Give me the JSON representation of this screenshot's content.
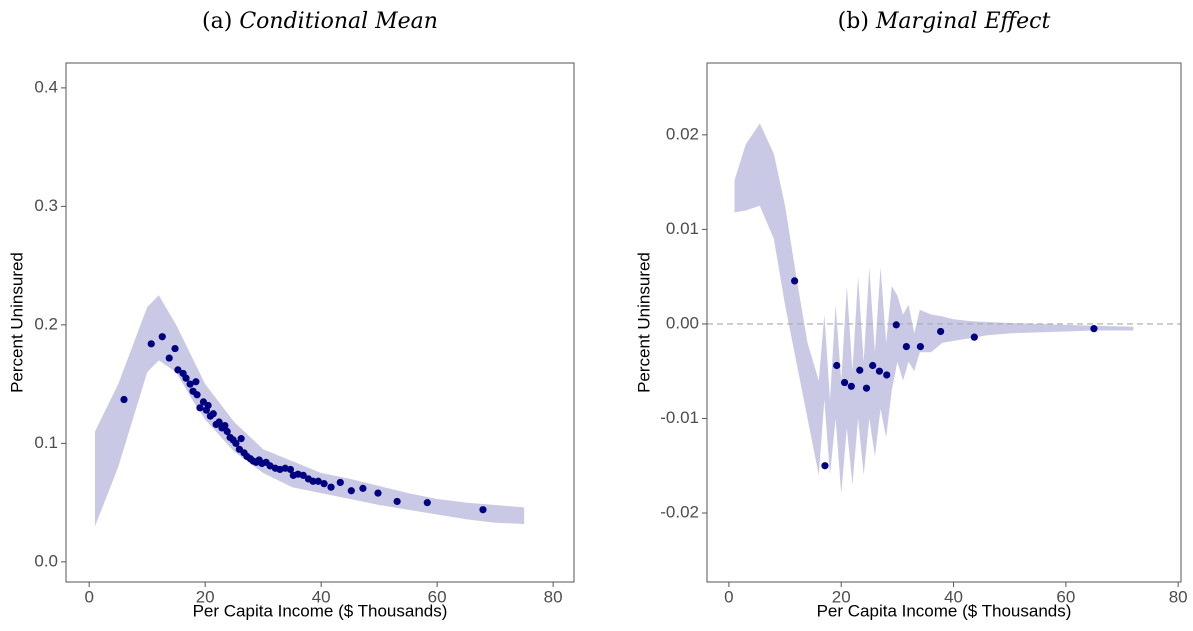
{
  "chart_data": [
    {
      "type": "scatter",
      "panel": "(a)",
      "title": "Conditional Mean",
      "x_label": "Per Capita Income ($ Thousands)",
      "y_label": "Percent Uninsured",
      "xlim": [
        -4,
        83.6
      ],
      "ylim": [
        -0.017,
        0.421
      ],
      "xticks": [
        0,
        20,
        40,
        60,
        80
      ],
      "yticks": [
        {
          "value": 0,
          "label": "0.0"
        },
        0.1,
        0.2,
        0.3,
        0.4
      ],
      "points": {
        "color": "#000080",
        "x": [
          6.0,
          10.7,
          12.6,
          13.8,
          14.8,
          15.3,
          16.2,
          16.7,
          17.4,
          17.9,
          18.4,
          18.6,
          19.1,
          19.7,
          20.2,
          20.5,
          20.9,
          21.4,
          21.9,
          22.4,
          22.9,
          23.4,
          23.8,
          24.3,
          24.8,
          25.3,
          25.9,
          26.2,
          26.7,
          27.2,
          27.8,
          28.3,
          28.8,
          29.3,
          29.8,
          30.5,
          31.2,
          32.1,
          32.9,
          33.8,
          34.7,
          35.2,
          36.0,
          36.9,
          37.8,
          38.6,
          39.5,
          40.5,
          41.7,
          43.3,
          45.2,
          47.2,
          49.8,
          53.1,
          58.3,
          67.9
        ],
        "y": [
          0.137,
          0.184,
          0.19,
          0.172,
          0.18,
          0.162,
          0.159,
          0.155,
          0.15,
          0.144,
          0.152,
          0.141,
          0.13,
          0.135,
          0.128,
          0.132,
          0.123,
          0.125,
          0.116,
          0.118,
          0.113,
          0.115,
          0.11,
          0.105,
          0.103,
          0.1,
          0.095,
          0.104,
          0.092,
          0.089,
          0.087,
          0.085,
          0.084,
          0.086,
          0.083,
          0.084,
          0.081,
          0.079,
          0.078,
          0.079,
          0.078,
          0.073,
          0.074,
          0.073,
          0.07,
          0.068,
          0.068,
          0.066,
          0.063,
          0.067,
          0.06,
          0.062,
          0.058,
          0.051,
          0.05,
          0.044
        ]
      },
      "band": {
        "color": "#c9c9e5",
        "x": [
          1,
          5,
          10,
          12,
          15,
          18,
          20,
          25,
          30,
          35,
          40,
          45,
          50,
          55,
          60,
          65,
          70,
          75
        ],
        "upper": [
          0.11,
          0.15,
          0.215,
          0.225,
          0.2,
          0.17,
          0.15,
          0.118,
          0.095,
          0.085,
          0.075,
          0.07,
          0.064,
          0.058,
          0.053,
          0.05,
          0.048,
          0.046
        ],
        "lower": [
          0.03,
          0.08,
          0.16,
          0.17,
          0.16,
          0.135,
          0.12,
          0.093,
          0.075,
          0.063,
          0.058,
          0.053,
          0.048,
          0.044,
          0.04,
          0.036,
          0.033,
          0.032
        ]
      }
    },
    {
      "type": "scatter",
      "panel": "(b)",
      "title": "Marginal Effect",
      "x_label": "Per Capita Income ($ Thousands)",
      "y_label": "Percent Uninsured",
      "xlim": [
        -3.9,
        80.5
      ],
      "ylim": [
        -0.0273,
        0.0276
      ],
      "xticks": [
        0,
        20,
        40,
        60,
        80
      ],
      "yticks": [
        -0.02,
        -0.01,
        {
          "value": 0,
          "label": "0.00"
        },
        0.01,
        0.02
      ],
      "reference_line": 0,
      "points": {
        "color": "#000080",
        "x": [
          11.7,
          17.1,
          19.2,
          20.6,
          21.8,
          23.3,
          24.5,
          25.6,
          26.8,
          28.1,
          29.8,
          31.6,
          34.1,
          37.7,
          43.7,
          65.0
        ],
        "y": [
          0.00455,
          -0.015,
          -0.0044,
          -0.0062,
          -0.0066,
          -0.0049,
          -0.0068,
          -0.0044,
          -0.005,
          -0.0054,
          -0.0001,
          -0.0024,
          -0.0024,
          -0.0008,
          -0.0014,
          -0.0005
        ]
      },
      "band": {
        "color": "#c9c9e5",
        "x": [
          1,
          3,
          5.5,
          8,
          10,
          12,
          14,
          16,
          17,
          18,
          19,
          20,
          21,
          22,
          23,
          24,
          25,
          26,
          27,
          28,
          29,
          30,
          31,
          32,
          33,
          34,
          36,
          38,
          40,
          43,
          46,
          50,
          55,
          60,
          65,
          72
        ],
        "upper": [
          0.0152,
          0.019,
          0.0212,
          0.018,
          0.0125,
          0.005,
          -0.002,
          -0.006,
          0.001,
          -0.008,
          0.002,
          -0.006,
          0.004,
          -0.005,
          0.005,
          -0.004,
          0.006,
          -0.003,
          0.006,
          -0.002,
          0.004,
          0.003,
          0.001,
          0.002,
          -0.001,
          0.0015,
          0.001,
          0.0008,
          0.0005,
          0.0003,
          0.0002,
          0.0001,
          0.0,
          -0.0001,
          -0.0002,
          -0.0003
        ],
        "lower": [
          0.0118,
          0.012,
          0.0125,
          0.009,
          0.002,
          -0.004,
          -0.01,
          -0.016,
          -0.008,
          -0.016,
          -0.01,
          -0.018,
          -0.011,
          -0.017,
          -0.01,
          -0.016,
          -0.01,
          -0.014,
          -0.009,
          -0.012,
          -0.007,
          -0.004,
          -0.006,
          -0.004,
          -0.005,
          -0.003,
          -0.003,
          -0.002,
          -0.0018,
          -0.0015,
          -0.0012,
          -0.001,
          -0.0009,
          -0.0008,
          -0.0007,
          -0.0007
        ]
      }
    }
  ]
}
